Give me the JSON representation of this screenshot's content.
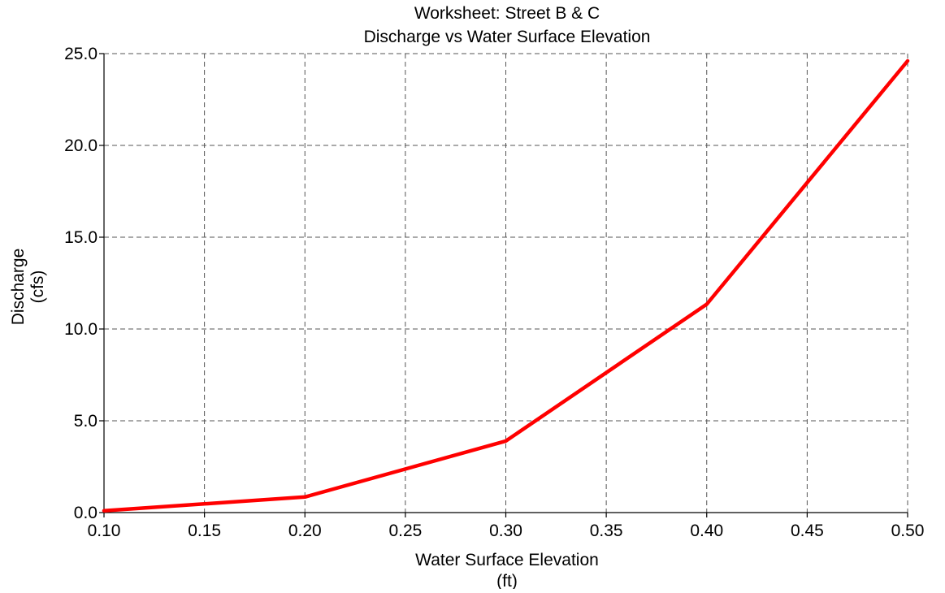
{
  "chart_data": {
    "type": "line",
    "title": "Worksheet: Street B & C",
    "subtitle": "Discharge vs Water Surface Elevation",
    "xlabel": "Water Surface Elevation",
    "xunit": "(ft)",
    "ylabel": "Discharge",
    "yunit": "(cfs)",
    "xlim": [
      0.1,
      0.5
    ],
    "ylim": [
      0.0,
      25.0
    ],
    "xticks": [
      0.1,
      0.15,
      0.2,
      0.25,
      0.3,
      0.35,
      0.4,
      0.45,
      0.5
    ],
    "xtick_labels": [
      "0.10",
      "0.15",
      "0.20",
      "0.25",
      "0.30",
      "0.35",
      "0.40",
      "0.45",
      "0.50"
    ],
    "yticks": [
      0.0,
      5.0,
      10.0,
      15.0,
      20.0,
      25.0
    ],
    "ytick_labels": [
      "0.0",
      "5.0",
      "10.0",
      "15.0",
      "20.0",
      "25.0"
    ],
    "grid": true,
    "legend": "none",
    "series": [
      {
        "color": "#ff0000",
        "x": [
          0.1,
          0.2,
          0.3,
          0.4,
          0.5
        ],
        "y": [
          0.1,
          0.85,
          3.9,
          11.35,
          24.6
        ]
      }
    ]
  }
}
